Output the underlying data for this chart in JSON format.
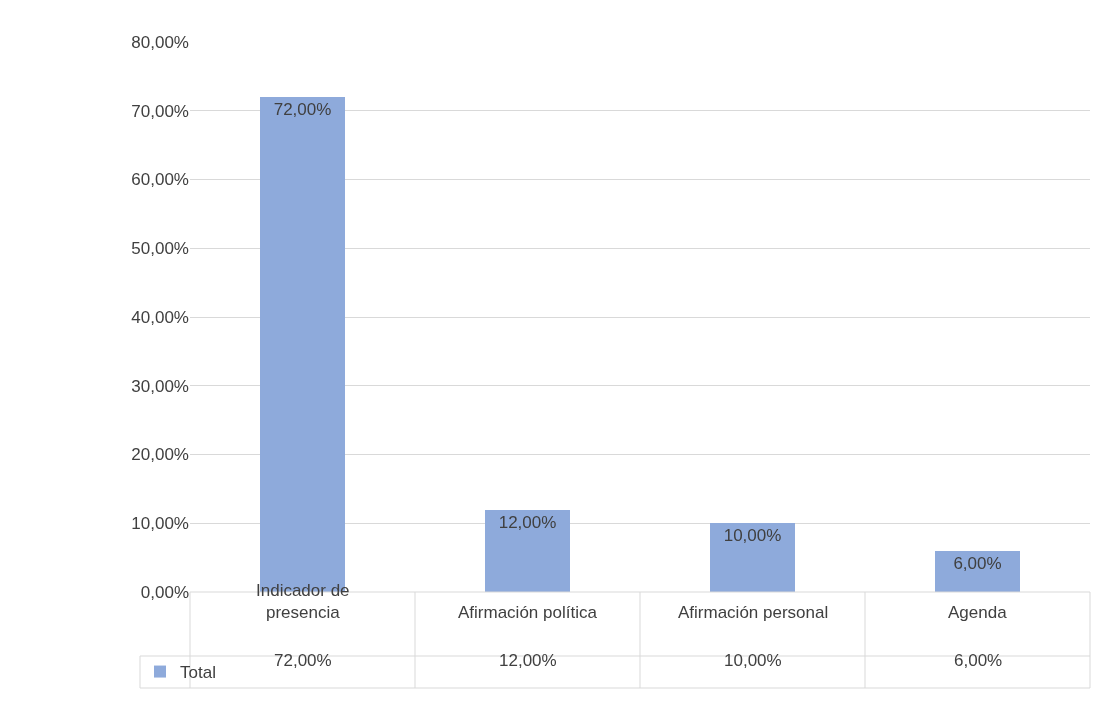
{
  "chart_data": {
    "type": "bar",
    "categories": [
      "Indicador de presencia",
      "Afirmación política",
      "Afirmación personal",
      "Agenda"
    ],
    "series": [
      {
        "name": "Total",
        "color": "#8eaadb",
        "values": [
          72,
          12,
          10,
          6
        ],
        "value_labels": [
          "72,00%",
          "12,00%",
          "10,00%",
          "6,00%"
        ]
      }
    ],
    "ylim": [
      0,
      80
    ],
    "yticks": [
      {
        "value": 0,
        "label": "0,00%"
      },
      {
        "value": 10,
        "label": "10,00%"
      },
      {
        "value": 20,
        "label": "20,00%"
      },
      {
        "value": 30,
        "label": "30,00%"
      },
      {
        "value": 40,
        "label": "40,00%"
      },
      {
        "value": 50,
        "label": "50,00%"
      },
      {
        "value": 60,
        "label": "60,00%"
      },
      {
        "value": 70,
        "label": "70,00%"
      },
      {
        "value": 80,
        "label": "80,00%"
      }
    ],
    "grid": "y",
    "legend": "bottom left"
  }
}
